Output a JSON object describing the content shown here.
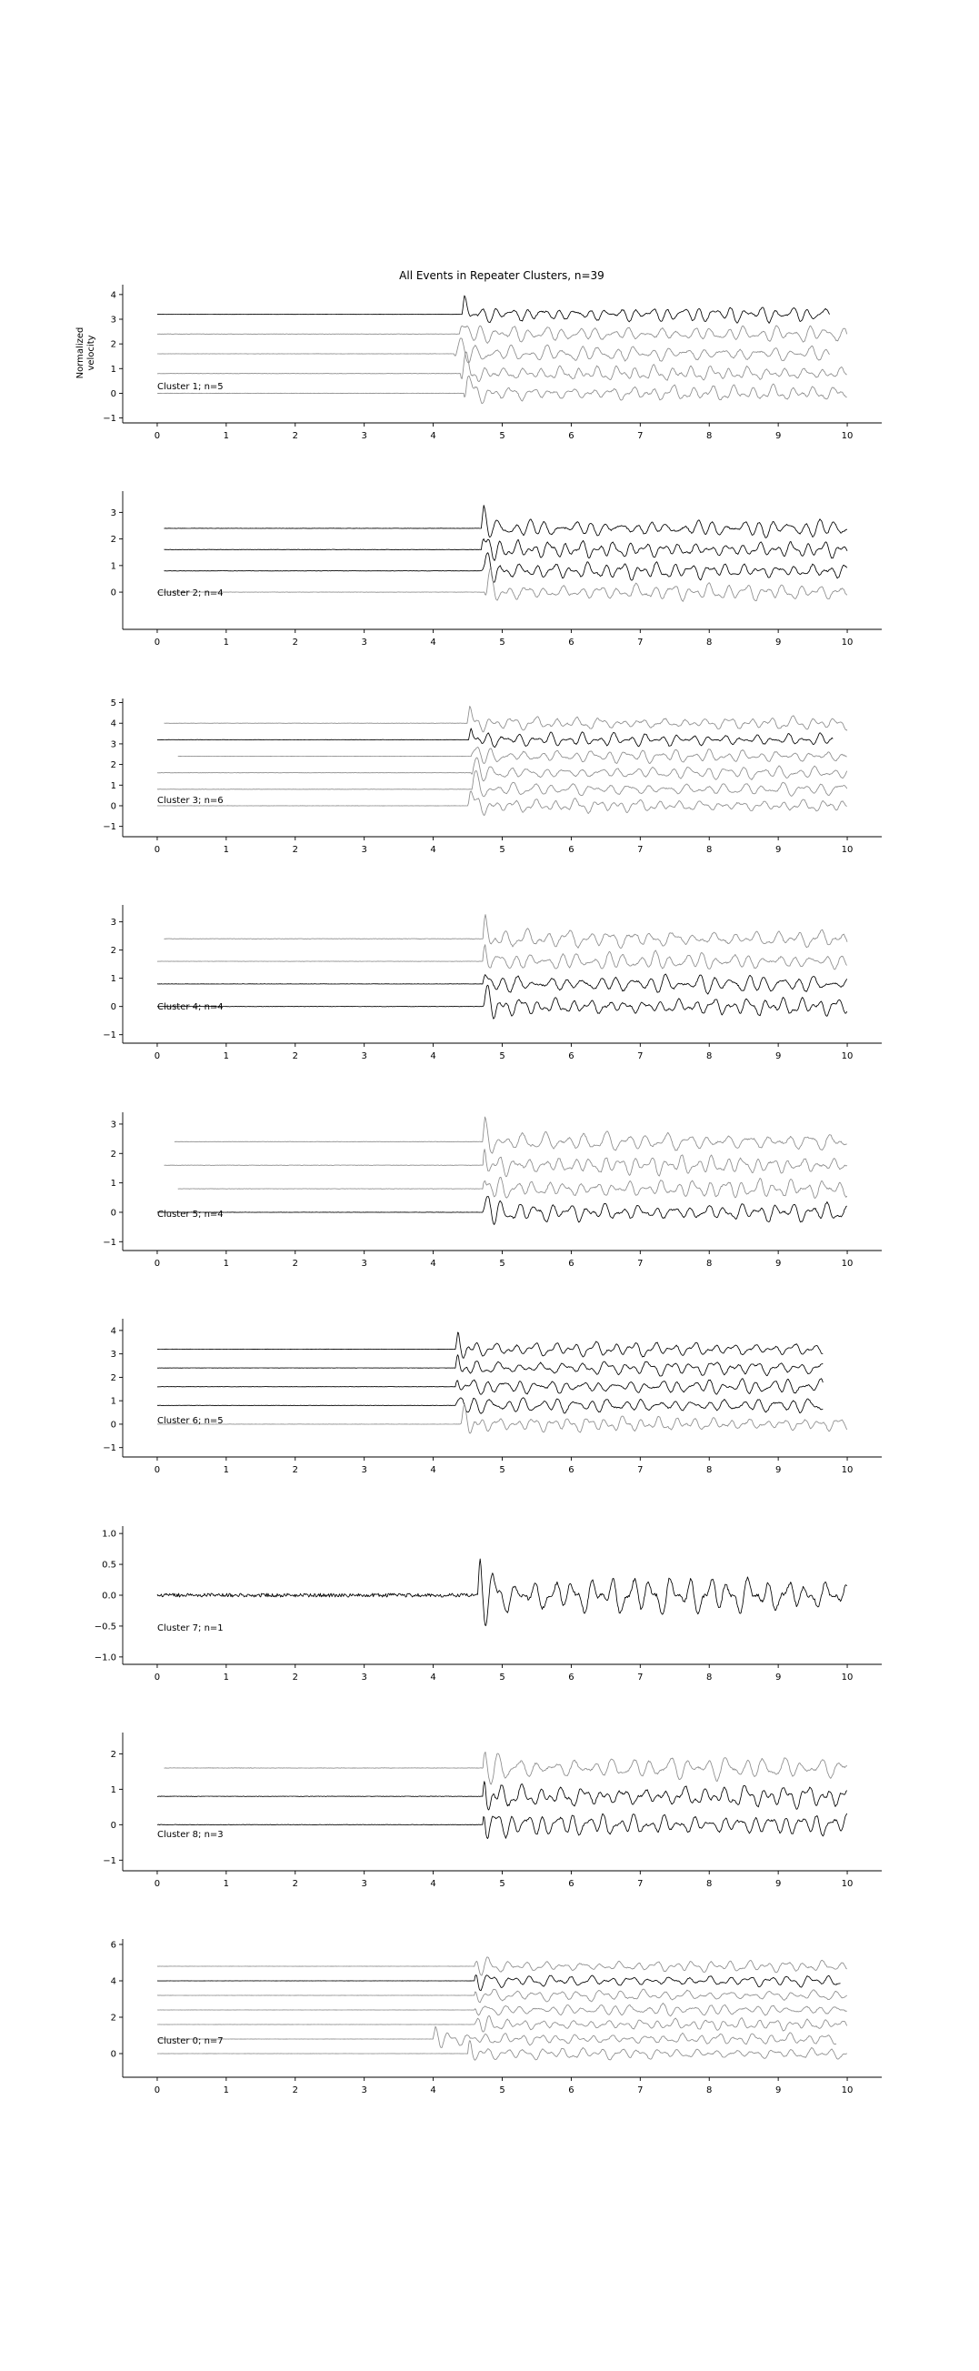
{
  "chart_data": {
    "type": "line",
    "title": "All Events in Repeater Clusters, n=39",
    "ylabel": "Normalized\nvelocity",
    "xlabel": "",
    "xlim": [
      -0.5,
      10.5
    ],
    "x_ticks": [
      0,
      1,
      2,
      3,
      4,
      5,
      6,
      7,
      8,
      9,
      10
    ],
    "grid": false,
    "legend": "none",
    "colors": {
      "primary": "#000000",
      "secondary": "#8c8c8c"
    },
    "panels": [
      {
        "label": "Cluster 1; n=5",
        "ylim": [
          -1.2,
          4.4
        ],
        "y_ticks": [
          -1,
          0,
          1,
          2,
          3,
          4
        ],
        "traces": [
          {
            "offset": 3.2,
            "onset": 4.42,
            "start": 0.0,
            "end": 9.75,
            "color": "primary"
          },
          {
            "offset": 2.4,
            "onset": 4.38,
            "start": 0.0,
            "end": 10.0,
            "color": "secondary"
          },
          {
            "offset": 1.6,
            "onset": 4.3,
            "start": 0.0,
            "end": 9.75,
            "color": "secondary"
          },
          {
            "offset": 0.8,
            "onset": 4.4,
            "start": 0.0,
            "end": 10.0,
            "color": "secondary"
          },
          {
            "offset": 0.0,
            "onset": 4.45,
            "start": 0.0,
            "end": 10.0,
            "color": "secondary"
          }
        ]
      },
      {
        "label": "Cluster 2; n=4",
        "ylim": [
          -1.4,
          3.8
        ],
        "y_ticks": [
          0,
          1,
          2,
          3
        ],
        "traces": [
          {
            "offset": 2.4,
            "onset": 4.7,
            "start": 0.1,
            "end": 10.0,
            "color": "primary"
          },
          {
            "offset": 1.6,
            "onset": 4.7,
            "start": 0.1,
            "end": 10.0,
            "color": "primary"
          },
          {
            "offset": 0.8,
            "onset": 4.7,
            "start": 0.1,
            "end": 10.0,
            "color": "primary"
          },
          {
            "offset": 0.0,
            "onset": 4.75,
            "start": 0.0,
            "end": 10.0,
            "color": "secondary"
          }
        ]
      },
      {
        "label": "Cluster 3; n=6",
        "ylim": [
          -1.5,
          5.2
        ],
        "y_ticks": [
          -1,
          0,
          1,
          2,
          3,
          4,
          5
        ],
        "traces": [
          {
            "offset": 4.0,
            "onset": 4.5,
            "start": 0.1,
            "end": 10.0,
            "color": "secondary"
          },
          {
            "offset": 3.2,
            "onset": 4.52,
            "start": 0.0,
            "end": 9.8,
            "color": "primary"
          },
          {
            "offset": 2.4,
            "onset": 4.55,
            "start": 0.3,
            "end": 10.0,
            "color": "secondary"
          },
          {
            "offset": 1.6,
            "onset": 4.55,
            "start": 0.0,
            "end": 10.0,
            "color": "secondary"
          },
          {
            "offset": 0.8,
            "onset": 4.55,
            "start": 0.0,
            "end": 10.0,
            "color": "secondary"
          },
          {
            "offset": 0.0,
            "onset": 4.5,
            "start": 0.0,
            "end": 10.0,
            "color": "secondary"
          }
        ]
      },
      {
        "label": "Cluster 4; n=4",
        "ylim": [
          -1.3,
          3.6
        ],
        "y_ticks": [
          -1,
          0,
          1,
          2,
          3
        ],
        "traces": [
          {
            "offset": 2.4,
            "onset": 4.72,
            "start": 0.1,
            "end": 10.0,
            "color": "secondary"
          },
          {
            "offset": 1.6,
            "onset": 4.72,
            "start": 0.0,
            "end": 10.0,
            "color": "secondary"
          },
          {
            "offset": 0.8,
            "onset": 4.72,
            "start": 0.0,
            "end": 10.0,
            "color": "primary"
          },
          {
            "offset": 0.0,
            "onset": 4.72,
            "start": 0.0,
            "end": 10.0,
            "color": "primary"
          }
        ]
      },
      {
        "label": "Cluster 5; n=4",
        "ylim": [
          -1.3,
          3.4
        ],
        "y_ticks": [
          -1,
          0,
          1,
          2,
          3
        ],
        "traces": [
          {
            "offset": 2.4,
            "onset": 4.72,
            "start": 0.25,
            "end": 10.0,
            "color": "secondary"
          },
          {
            "offset": 1.6,
            "onset": 4.72,
            "start": 0.1,
            "end": 10.0,
            "color": "secondary"
          },
          {
            "offset": 0.8,
            "onset": 4.72,
            "start": 0.3,
            "end": 10.0,
            "color": "secondary"
          },
          {
            "offset": 0.0,
            "onset": 4.72,
            "start": 0.0,
            "end": 10.0,
            "color": "primary"
          }
        ]
      },
      {
        "label": "Cluster 6; n=5",
        "ylim": [
          -1.4,
          4.5
        ],
        "y_ticks": [
          -1,
          0,
          1,
          2,
          3,
          4
        ],
        "traces": [
          {
            "offset": 3.2,
            "onset": 4.33,
            "start": 0.0,
            "end": 9.65,
            "color": "primary"
          },
          {
            "offset": 2.4,
            "onset": 4.33,
            "start": 0.0,
            "end": 9.65,
            "color": "primary"
          },
          {
            "offset": 1.6,
            "onset": 4.33,
            "start": 0.0,
            "end": 9.65,
            "color": "primary"
          },
          {
            "offset": 0.8,
            "onset": 4.33,
            "start": 0.0,
            "end": 9.65,
            "color": "primary"
          },
          {
            "offset": 0.0,
            "onset": 4.4,
            "start": 0.0,
            "end": 10.0,
            "color": "secondary"
          }
        ]
      },
      {
        "label": "Cluster 7; n=1",
        "ylim": [
          -1.12,
          1.12
        ],
        "y_ticks": [
          -1.0,
          -0.5,
          0.0,
          0.5,
          1.0
        ],
        "tick_decimals": 1,
        "traces": [
          {
            "offset": 0.0,
            "onset": 4.65,
            "start": 0.0,
            "end": 10.0,
            "color": "primary",
            "noisy": true
          }
        ]
      },
      {
        "label": "Cluster 8; n=3",
        "ylim": [
          -1.3,
          2.6
        ],
        "y_ticks": [
          -1,
          0,
          1,
          2
        ],
        "traces": [
          {
            "offset": 1.6,
            "onset": 4.72,
            "start": 0.1,
            "end": 10.0,
            "color": "secondary"
          },
          {
            "offset": 0.8,
            "onset": 4.72,
            "start": 0.0,
            "end": 10.0,
            "color": "primary"
          },
          {
            "offset": 0.0,
            "onset": 4.72,
            "start": 0.0,
            "end": 10.0,
            "color": "primary"
          }
        ]
      },
      {
        "label": "Cluster 0; n=7",
        "ylim": [
          -1.3,
          6.3
        ],
        "y_ticks": [
          0,
          2,
          4,
          6
        ],
        "traces": [
          {
            "offset": 4.8,
            "onset": 4.6,
            "start": 0.0,
            "end": 10.0,
            "color": "secondary"
          },
          {
            "offset": 4.0,
            "onset": 4.6,
            "start": 0.0,
            "end": 9.9,
            "color": "primary"
          },
          {
            "offset": 3.2,
            "onset": 4.6,
            "start": 0.0,
            "end": 10.0,
            "color": "secondary"
          },
          {
            "offset": 2.4,
            "onset": 4.6,
            "start": 0.0,
            "end": 10.0,
            "color": "secondary"
          },
          {
            "offset": 1.6,
            "onset": 4.6,
            "start": 0.0,
            "end": 10.0,
            "color": "secondary"
          },
          {
            "offset": 0.8,
            "onset": 4.0,
            "start": 0.0,
            "end": 9.85,
            "color": "secondary"
          },
          {
            "offset": 0.0,
            "onset": 4.5,
            "start": 0.0,
            "end": 10.0,
            "color": "secondary"
          }
        ]
      }
    ]
  }
}
